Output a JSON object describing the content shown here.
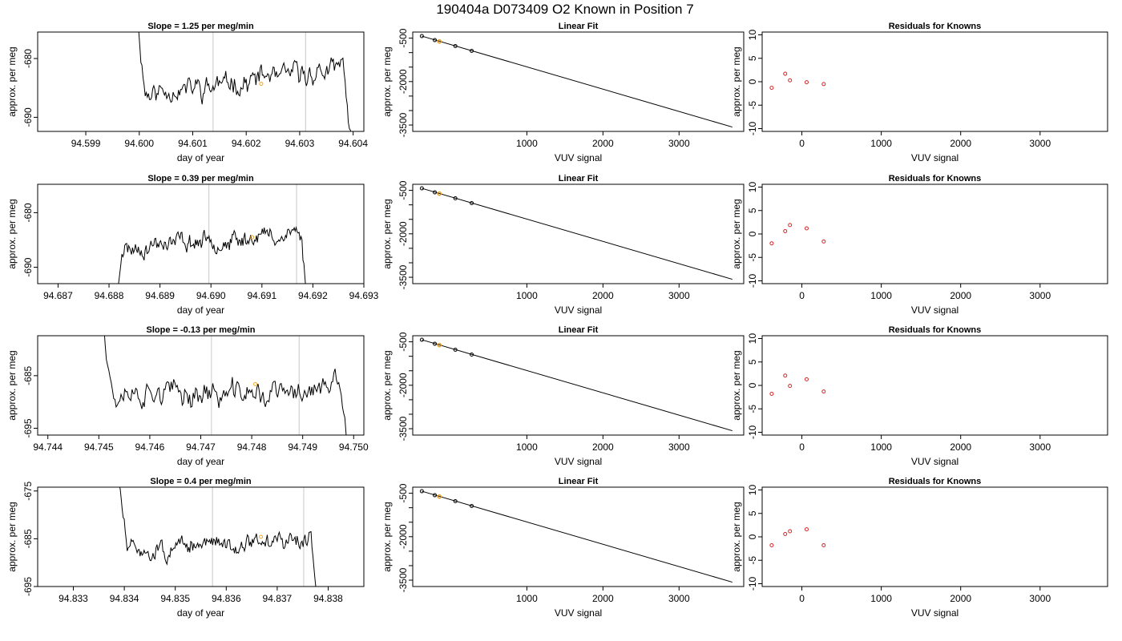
{
  "page_title": "190404a     D073409   O2 Known in Position  7",
  "chart_data": [
    {
      "row": 0,
      "type": "line",
      "title": "Slope =  1.25  per meg/min",
      "xlabel": "day of year",
      "ylabel": "approx. per meg",
      "xlim": [
        94.5981,
        94.6042
      ],
      "ylim": [
        -692.4,
        -675.5
      ],
      "xticks": [
        94.599,
        94.6,
        94.601,
        94.602,
        94.603,
        94.604
      ],
      "xtick_labels": [
        "94.599",
        "94.600",
        "94.601",
        "94.602",
        "94.603",
        "94.604"
      ],
      "yticks": [
        -690,
        -680
      ],
      "ytick_labels": [
        "-690",
        "-680"
      ],
      "vlines": [
        94.60138,
        94.60311
      ],
      "base": -685.8,
      "amp": 1.4,
      "trend": 4.0,
      "start": 94.59995,
      "end": 94.60397,
      "seed": 11,
      "marker": {
        "x": 94.60228,
        "y": -684.3
      }
    },
    {
      "row": 1,
      "type": "line",
      "title": "Slope =  0.39  per meg/min",
      "xlabel": "day of year",
      "ylabel": "approx. per meg",
      "xlim": [
        94.6866,
        94.693
      ],
      "ylim": [
        -693.0,
        -674.8
      ],
      "xticks": [
        94.687,
        94.688,
        94.689,
        94.69,
        94.691,
        94.692,
        94.693
      ],
      "xtick_labels": [
        "94.687",
        "94.688",
        "94.689",
        "94.690",
        "94.691",
        "94.692",
        "94.693"
      ],
      "yticks": [
        -690,
        -680
      ],
      "ytick_labels": [
        "-690",
        "-680"
      ],
      "vlines": [
        94.68996,
        94.69168
      ],
      "base": -686.8,
      "amp": 1.2,
      "trend": 3.2,
      "start": 94.6881,
      "end": 94.6919,
      "seed": 23,
      "marker": {
        "x": 94.69081,
        "y": -684.5
      }
    },
    {
      "row": 2,
      "type": "line",
      "title": "Slope =  -0.13  per meg/min",
      "xlabel": "day of year",
      "ylabel": "approx. per meg",
      "xlim": [
        94.7438,
        94.7502
      ],
      "ylim": [
        -696.3,
        -677.4
      ],
      "xticks": [
        94.744,
        94.745,
        94.746,
        94.747,
        94.748,
        94.749,
        94.75
      ],
      "xtick_labels": [
        "94.744",
        "94.745",
        "94.746",
        "94.747",
        "94.748",
        "94.749",
        "94.750"
      ],
      "yticks": [
        -695,
        -685
      ],
      "ytick_labels": [
        "-695",
        "-685"
      ],
      "vlines": [
        94.74721,
        94.74893
      ],
      "base": -689.0,
      "amp": 1.8,
      "trend": 1.2,
      "start": 94.7451,
      "end": 94.7499,
      "seed": 37,
      "marker": {
        "x": 94.74807,
        "y": -686.6
      }
    },
    {
      "row": 3,
      "type": "line",
      "title": "Slope =  0.4  per meg/min",
      "xlabel": "day of year",
      "ylabel": "approx. per meg",
      "xlim": [
        94.8323,
        94.8387
      ],
      "ylim": [
        -695.0,
        -674.2
      ],
      "xticks": [
        94.833,
        94.834,
        94.835,
        94.836,
        94.837,
        94.838
      ],
      "xtick_labels": [
        "94.833",
        "94.834",
        "94.835",
        "94.836",
        "94.837",
        "94.838"
      ],
      "yticks": [
        -695,
        -685,
        -675
      ],
      "ytick_labels": [
        "-695",
        "-685",
        "-675"
      ],
      "vlines": [
        94.83573,
        94.83752
      ],
      "base": -687.6,
      "amp": 1.3,
      "trend": 3.0,
      "start": 94.8339,
      "end": 94.8378,
      "seed": 51,
      "marker": {
        "x": 94.83668,
        "y": -684.6
      }
    },
    {
      "row": 0,
      "type": "line",
      "title": "Linear Fit",
      "xlabel": "VUV signal",
      "ylabel": "approx. per meg",
      "xlim": [
        -500,
        3850
      ],
      "ylim": [
        -3720,
        -290
      ],
      "xticks": [
        1000,
        2000,
        3000
      ],
      "xtick_labels": [
        "1000",
        "2000",
        "3000"
      ],
      "yticks": [
        -500,
        -2000,
        -3500
      ],
      "ytick_labels": [
        "-500",
        "-2000",
        "-3500"
      ],
      "yminor": [
        -1000,
        -1500,
        -2500,
        -3000
      ],
      "fit": {
        "x": [
          -380,
          3700
        ],
        "y": [
          -430,
          -3570
        ]
      },
      "points": [
        {
          "x": -380,
          "y": -430
        },
        {
          "x": -210,
          "y": -568
        },
        {
          "x": -150,
          "y": -613
        },
        {
          "x": 60,
          "y": -775
        },
        {
          "x": 275,
          "y": -940
        }
      ],
      "orange_point": {
        "x": -150,
        "y": -613
      }
    },
    {
      "row": 1,
      "type": "line",
      "title": "Linear Fit",
      "xlabel": "VUV signal",
      "ylabel": "approx. per meg",
      "xlim": [
        -500,
        3850
      ],
      "ylim": [
        -3720,
        -290
      ],
      "xticks": [
        1000,
        2000,
        3000
      ],
      "xtick_labels": [
        "1000",
        "2000",
        "3000"
      ],
      "yticks": [
        -500,
        -2000,
        -3500
      ],
      "ytick_labels": [
        "-500",
        "-2000",
        "-3500"
      ],
      "yminor": [
        -1000,
        -1500,
        -2500,
        -3000
      ],
      "fit": {
        "x": [
          -380,
          3700
        ],
        "y": [
          -430,
          -3570
        ]
      },
      "points": [
        {
          "x": -380,
          "y": -430
        },
        {
          "x": -210,
          "y": -568
        },
        {
          "x": -150,
          "y": -613
        },
        {
          "x": 60,
          "y": -775
        },
        {
          "x": 275,
          "y": -940
        }
      ],
      "orange_point": {
        "x": -150,
        "y": -613
      }
    },
    {
      "row": 2,
      "type": "line",
      "title": "Linear Fit",
      "xlabel": "VUV signal",
      "ylabel": "approx. per meg",
      "xlim": [
        -500,
        3850
      ],
      "ylim": [
        -3720,
        -290
      ],
      "xticks": [
        1000,
        2000,
        3000
      ],
      "xtick_labels": [
        "1000",
        "2000",
        "3000"
      ],
      "yticks": [
        -500,
        -2000,
        -3500
      ],
      "ytick_labels": [
        "-500",
        "-2000",
        "-3500"
      ],
      "yminor": [
        -1000,
        -1500,
        -2500,
        -3000
      ],
      "fit": {
        "x": [
          -380,
          3700
        ],
        "y": [
          -430,
          -3570
        ]
      },
      "points": [
        {
          "x": -380,
          "y": -430
        },
        {
          "x": -210,
          "y": -568
        },
        {
          "x": -150,
          "y": -613
        },
        {
          "x": 60,
          "y": -775
        },
        {
          "x": 275,
          "y": -940
        }
      ],
      "orange_point": {
        "x": -150,
        "y": -613
      }
    },
    {
      "row": 3,
      "type": "line",
      "title": "Linear Fit",
      "xlabel": "VUV signal",
      "ylabel": "approx. per meg",
      "xlim": [
        -500,
        3850
      ],
      "ylim": [
        -3720,
        -290
      ],
      "xticks": [
        1000,
        2000,
        3000
      ],
      "xtick_labels": [
        "1000",
        "2000",
        "3000"
      ],
      "yticks": [
        -500,
        -2000,
        -3500
      ],
      "ytick_labels": [
        "-500",
        "-2000",
        "-3500"
      ],
      "yminor": [
        -1000,
        -1500,
        -2500,
        -3000
      ],
      "fit": {
        "x": [
          -380,
          3700
        ],
        "y": [
          -430,
          -3570
        ]
      },
      "points": [
        {
          "x": -380,
          "y": -430
        },
        {
          "x": -210,
          "y": -568
        },
        {
          "x": -150,
          "y": -613
        },
        {
          "x": 60,
          "y": -775
        },
        {
          "x": 275,
          "y": -940
        }
      ],
      "orange_point": {
        "x": -150,
        "y": -613
      }
    },
    {
      "row": 0,
      "type": "scatter",
      "title": "Residuals for Knowns",
      "xlabel": "VUV signal",
      "ylabel": "approx. per meg",
      "xlim": [
        -500,
        3850
      ],
      "ylim": [
        -10.6,
        10.6
      ],
      "xticks": [
        0,
        1000,
        2000,
        3000
      ],
      "xtick_labels": [
        "0",
        "1000",
        "2000",
        "3000"
      ],
      "yticks": [
        -10,
        -5,
        0,
        5,
        10
      ],
      "ytick_labels": [
        "-10",
        "-5",
        "0",
        "5",
        "10"
      ],
      "points": [
        {
          "x": -380,
          "y": -1.3
        },
        {
          "x": -210,
          "y": 1.7
        },
        {
          "x": -150,
          "y": 0.3
        },
        {
          "x": 60,
          "y": -0.1
        },
        {
          "x": 275,
          "y": -0.5
        }
      ]
    },
    {
      "row": 1,
      "type": "scatter",
      "title": "Residuals for Knowns",
      "xlabel": "VUV signal",
      "ylabel": "approx. per meg",
      "xlim": [
        -500,
        3850
      ],
      "ylim": [
        -10.6,
        10.6
      ],
      "xticks": [
        0,
        1000,
        2000,
        3000
      ],
      "xtick_labels": [
        "0",
        "1000",
        "2000",
        "3000"
      ],
      "yticks": [
        -10,
        -5,
        0,
        5,
        10
      ],
      "ytick_labels": [
        "-10",
        "-5",
        "0",
        "5",
        "10"
      ],
      "points": [
        {
          "x": -380,
          "y": -2.0
        },
        {
          "x": -210,
          "y": 0.6
        },
        {
          "x": -150,
          "y": 1.9
        },
        {
          "x": 60,
          "y": 1.2
        },
        {
          "x": 275,
          "y": -1.6
        }
      ]
    },
    {
      "row": 2,
      "type": "scatter",
      "title": "Residuals for Knowns",
      "xlabel": "VUV signal",
      "ylabel": "approx. per meg",
      "xlim": [
        -500,
        3850
      ],
      "ylim": [
        -10.6,
        10.6
      ],
      "xticks": [
        0,
        1000,
        2000,
        3000
      ],
      "xtick_labels": [
        "0",
        "1000",
        "2000",
        "3000"
      ],
      "yticks": [
        -10,
        -5,
        0,
        5,
        10
      ],
      "ytick_labels": [
        "-10",
        "-5",
        "0",
        "5",
        "10"
      ],
      "points": [
        {
          "x": -380,
          "y": -1.8
        },
        {
          "x": -210,
          "y": 2.1
        },
        {
          "x": -150,
          "y": -0.1
        },
        {
          "x": 60,
          "y": 1.3
        },
        {
          "x": 275,
          "y": -1.3
        }
      ]
    },
    {
      "row": 3,
      "type": "scatter",
      "title": "Residuals for Knowns",
      "xlabel": "VUV signal",
      "ylabel": "approx. per meg",
      "xlim": [
        -500,
        3850
      ],
      "ylim": [
        -10.6,
        10.6
      ],
      "xticks": [
        0,
        1000,
        2000,
        3000
      ],
      "xtick_labels": [
        "0",
        "1000",
        "2000",
        "3000"
      ],
      "yticks": [
        -10,
        -5,
        0,
        5,
        10
      ],
      "ytick_labels": [
        "-10",
        "-5",
        "0",
        "5",
        "10"
      ],
      "points": [
        {
          "x": -380,
          "y": -1.8
        },
        {
          "x": -210,
          "y": 0.6
        },
        {
          "x": -150,
          "y": 1.2
        },
        {
          "x": 60,
          "y": 1.6
        },
        {
          "x": 275,
          "y": -1.8
        }
      ]
    }
  ],
  "colors": {
    "trace": "#000000",
    "vline": "#c8c8c8",
    "marker": "#f5a623",
    "known_point": "#000000",
    "residual_point": "#d62728",
    "axis": "#000000"
  }
}
